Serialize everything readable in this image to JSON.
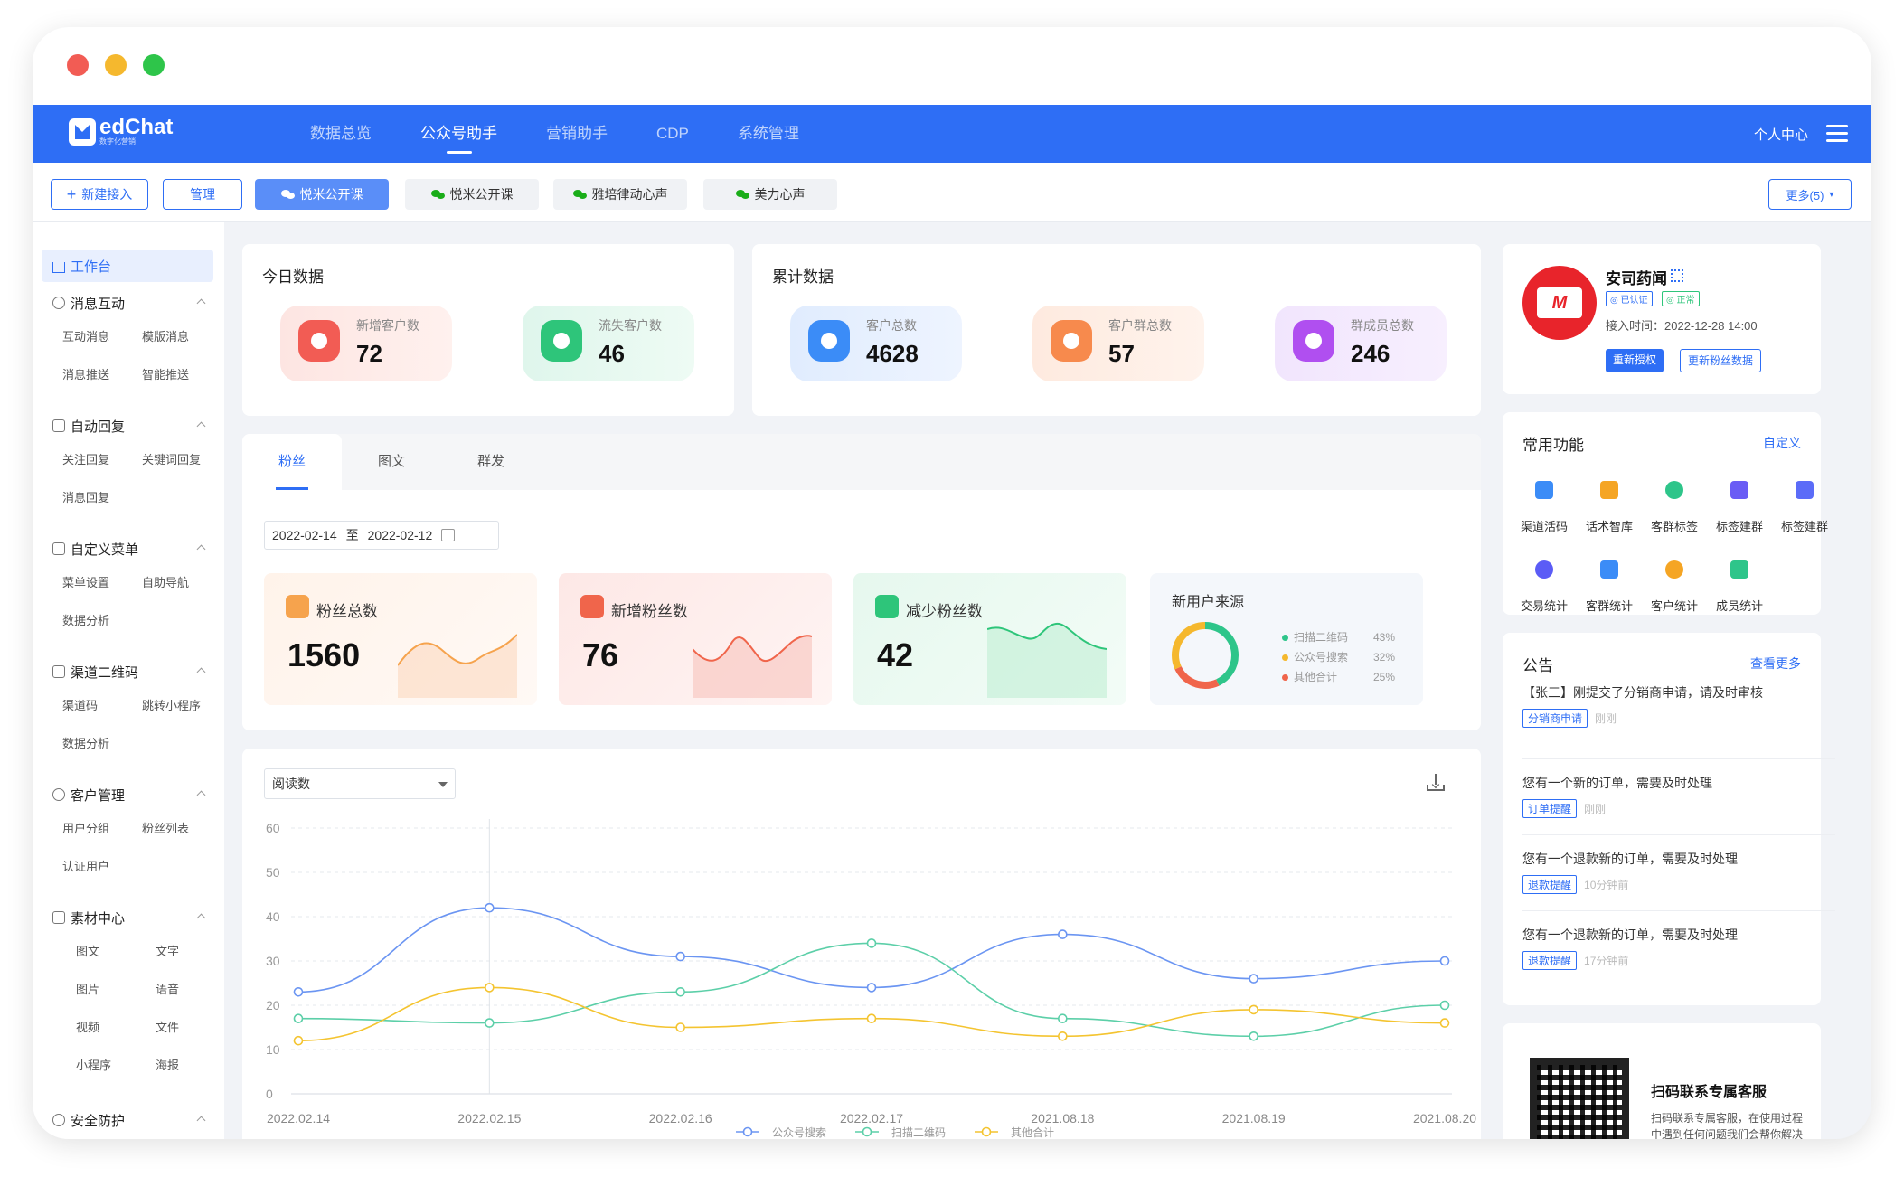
{
  "nav": {
    "brand": "edChat",
    "brand_sub": "数字化营销",
    "tabs": [
      "数据总览",
      "公众号助手",
      "营销助手",
      "CDP",
      "系统管理"
    ],
    "active_tab": 1,
    "user": "个人中心"
  },
  "subbar": {
    "new_access": "新建接入",
    "manage": "管理",
    "accounts": [
      "悦米公开课",
      "悦米公开课",
      "雅培律动心声",
      "美力心声"
    ],
    "more": "更多(5)"
  },
  "sidebar": {
    "home": "工作台",
    "groups": [
      {
        "title": "消息互动",
        "items": [
          "互动消息",
          "模版消息",
          "消息推送",
          "智能推送"
        ]
      },
      {
        "title": "自动回复",
        "items": [
          "关注回复",
          "关键词回复",
          "消息回复"
        ]
      },
      {
        "title": "自定义菜单",
        "items": [
          "菜单设置",
          "自助导航",
          "数据分析"
        ]
      },
      {
        "title": "渠道二维码",
        "items": [
          "渠道码",
          "跳转小程序",
          "数据分析"
        ]
      },
      {
        "title": "客户管理",
        "items": [
          "用户分组",
          "粉丝列表",
          "认证用户"
        ]
      },
      {
        "title": "素材中心",
        "items": [
          "图文",
          "文字",
          "图片",
          "语音",
          "视频",
          "文件",
          "小程序",
          "海报"
        ]
      },
      {
        "title": "安全防护",
        "items": []
      }
    ]
  },
  "today": {
    "title": "今日数据",
    "stats": [
      {
        "label": "新增客户数",
        "value": "72"
      },
      {
        "label": "流失客户数",
        "value": "46"
      }
    ]
  },
  "total": {
    "title": "累计数据",
    "stats": [
      {
        "label": "客户总数",
        "value": "4628"
      },
      {
        "label": "客户群总数",
        "value": "57"
      },
      {
        "label": "群成员总数",
        "value": "246"
      }
    ]
  },
  "fans": {
    "tabs": [
      "粉丝",
      "图文",
      "群发"
    ],
    "date_from": "2022-02-14",
    "date_sep": "至",
    "date_to": "2022-02-12",
    "kpis": [
      {
        "label": "粉丝总数",
        "value": "1560"
      },
      {
        "label": "新增粉丝数",
        "value": "76"
      },
      {
        "label": "减少粉丝数",
        "value": "42"
      }
    ],
    "source": {
      "title": "新用户来源",
      "items": [
        {
          "label": "扫描二维码",
          "pct": "43%",
          "color": "#2ec58a"
        },
        {
          "label": "公众号搜索",
          "pct": "32%",
          "color": "#f5b82e"
        },
        {
          "label": "其他合计",
          "pct": "25%",
          "color": "#f0654b"
        }
      ]
    }
  },
  "trend": {
    "metric": "阅读数"
  },
  "chart_data": {
    "type": "line",
    "categories": [
      "2022.02.14",
      "2022.02.15",
      "2022.02.16",
      "2022.02.17",
      "2021.08.18",
      "2021.08.19",
      "2021.08.20"
    ],
    "ylim": [
      0,
      60
    ],
    "yticks": [
      0,
      10,
      20,
      30,
      40,
      50,
      60
    ],
    "grid": true,
    "legend": "bottom",
    "series": [
      {
        "name": "公众号搜索",
        "color": "#6b95f2",
        "values": [
          23,
          42,
          31,
          24,
          36,
          26,
          30
        ]
      },
      {
        "name": "扫描二维码",
        "color": "#5ccfa8",
        "values": [
          17,
          16,
          23,
          34,
          17,
          13,
          20
        ]
      },
      {
        "name": "其他合计",
        "color": "#f4c430",
        "values": [
          12,
          24,
          15,
          17,
          13,
          19,
          16
        ]
      }
    ]
  },
  "account": {
    "name": "安司药闻",
    "badge1": "已认证",
    "badge2": "正常",
    "time": "接入时间：2022-12-28 14:00",
    "reauth": "重新授权",
    "refresh": "更新粉丝数据"
  },
  "common": {
    "title": "常用功能",
    "custom": "自定义",
    "items": [
      {
        "label": "渠道活码",
        "color": "#3b8cf7"
      },
      {
        "label": "话术智库",
        "color": "#f5a524"
      },
      {
        "label": "客群标签",
        "color": "#2ec58a"
      },
      {
        "label": "标签建群",
        "color": "#6a5cf5"
      },
      {
        "label": "标签建群",
        "color": "#5b6cf8"
      },
      {
        "label": "交易统计",
        "color": "#5b5cf6"
      },
      {
        "label": "客群统计",
        "color": "#3b8cf7"
      },
      {
        "label": "客户统计",
        "color": "#f5a524"
      },
      {
        "label": "成员统计",
        "color": "#2ec58a"
      }
    ]
  },
  "notice": {
    "title": "公告",
    "more": "查看更多",
    "items": [
      {
        "text": "【张三】刚提交了分销商申请，请及时审核",
        "tag": "分销商申请",
        "time": "刚刚"
      },
      {
        "text": "您有一个新的订单，需要及时处理",
        "tag": "订单提醒",
        "time": "刚刚"
      },
      {
        "text": "您有一个退款新的订单，需要及时处理",
        "tag": "退款提醒",
        "time": "10分钟前"
      },
      {
        "text": "您有一个退款新的订单，需要及时处理",
        "tag": "退款提醒",
        "time": "17分钟前"
      }
    ]
  },
  "service": {
    "title": "扫码联系专属客服",
    "desc": "扫码联系专属客服，在使用过程中遇到任何问题我们会帮你解决"
  }
}
